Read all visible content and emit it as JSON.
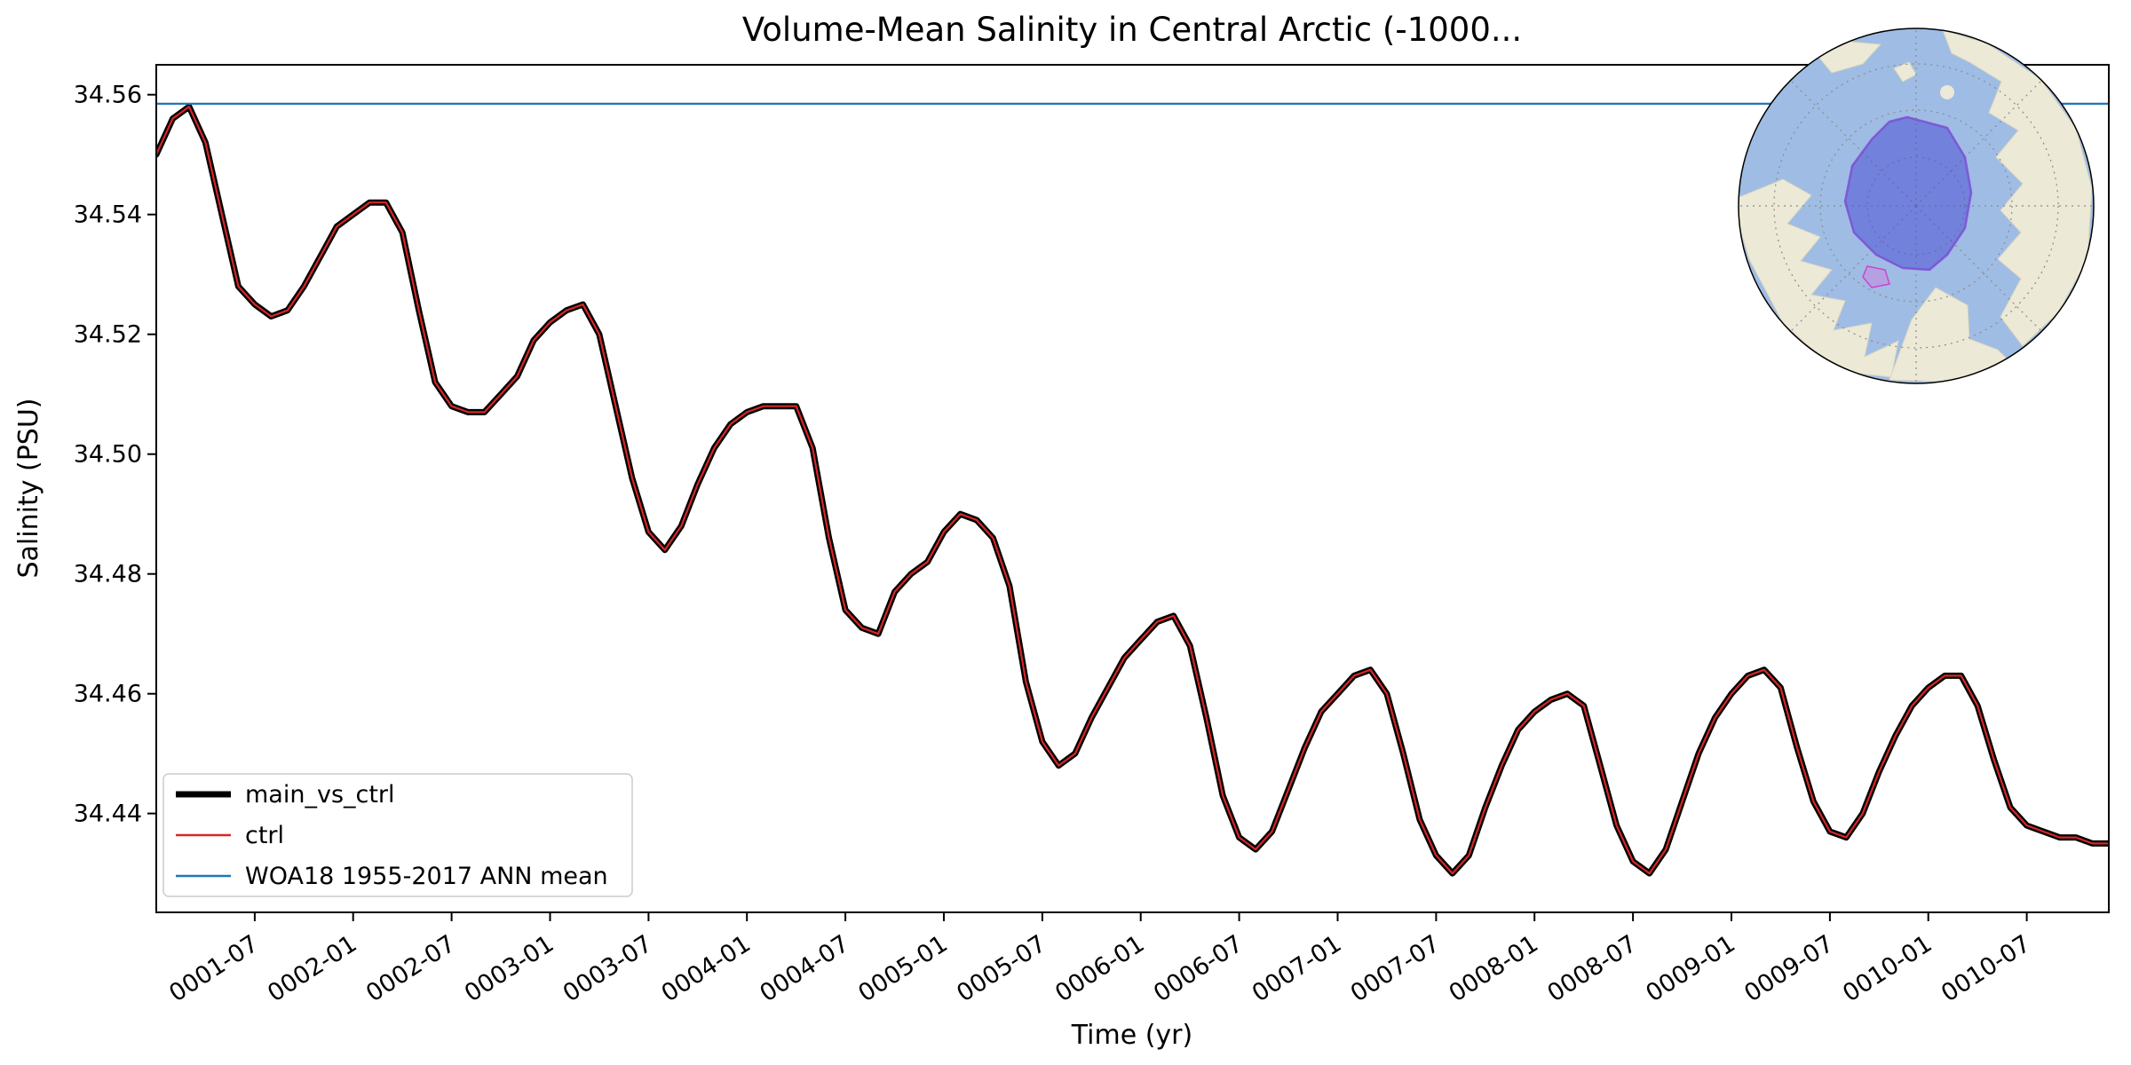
{
  "title": "Volume-Mean Salinity in Central Arctic (-1000...",
  "legend": [
    {
      "label": "main_vs_ctrl",
      "color": "#000000",
      "linewidth": 7
    },
    {
      "label": "ctrl",
      "color": "#d62728",
      "linewidth": 2.2
    },
    {
      "label": "WOA18 1955-2017 ANN mean",
      "color": "#1f77b4",
      "linewidth": 2.2
    }
  ],
  "chart_data": {
    "type": "line",
    "title": "Volume-Mean Salinity in Central Arctic (-1000...",
    "xlabel": "Time (yr)",
    "ylabel": "Salinity (PSU)",
    "x_start": "0001-01",
    "x_end": "0010-12",
    "frequency": "monthly",
    "xlim": [
      0,
      119
    ],
    "ylim": [
      34.4235,
      34.565
    ],
    "y_ticks": [
      "34.44",
      "34.46",
      "34.48",
      "34.50",
      "34.52",
      "34.54",
      "34.56"
    ],
    "x_tick_months": [
      6,
      12,
      18,
      24,
      30,
      36,
      42,
      48,
      54,
      60,
      66,
      72,
      78,
      84,
      90,
      96,
      102,
      108,
      114
    ],
    "x_tick_labels": [
      "0001-07",
      "0002-01",
      "0002-07",
      "0003-01",
      "0003-07",
      "0004-01",
      "0004-07",
      "0005-01",
      "0005-07",
      "0006-01",
      "0006-07",
      "0007-01",
      "0007-07",
      "0008-01",
      "0008-07",
      "0009-01",
      "0009-07",
      "0010-01",
      "0010-07"
    ],
    "values": [
      34.55,
      34.556,
      34.558,
      34.552,
      34.54,
      34.528,
      34.525,
      34.523,
      34.524,
      34.528,
      34.533,
      34.538,
      34.54,
      34.542,
      34.542,
      34.537,
      34.524,
      34.512,
      34.508,
      34.507,
      34.507,
      34.51,
      34.513,
      34.519,
      34.522,
      34.524,
      34.525,
      34.52,
      34.508,
      34.496,
      34.487,
      34.484,
      34.488,
      34.495,
      34.501,
      34.505,
      34.507,
      34.508,
      34.508,
      34.508,
      34.501,
      34.486,
      34.474,
      34.471,
      34.47,
      34.477,
      34.48,
      34.482,
      34.487,
      34.49,
      34.489,
      34.486,
      34.478,
      34.462,
      34.452,
      34.448,
      34.45,
      34.456,
      34.461,
      34.466,
      34.469,
      34.472,
      34.473,
      34.468,
      34.456,
      34.443,
      34.436,
      34.434,
      34.437,
      34.444,
      34.451,
      34.457,
      34.46,
      34.463,
      34.464,
      34.46,
      34.45,
      34.439,
      34.433,
      34.43,
      34.433,
      34.441,
      34.448,
      34.454,
      34.457,
      34.459,
      34.46,
      34.458,
      34.448,
      34.438,
      34.432,
      34.43,
      34.434,
      34.442,
      34.45,
      34.456,
      34.46,
      34.463,
      34.464,
      34.461,
      34.451,
      34.442,
      34.437,
      34.436,
      34.44,
      34.447,
      34.453,
      34.458,
      34.461,
      34.463,
      34.463,
      34.458,
      34.449,
      34.441,
      34.438,
      34.437,
      34.436,
      34.436,
      34.435,
      34.435
    ],
    "series": [
      {
        "name": "main_vs_ctrl",
        "color": "#000000",
        "linewidth": 7,
        "uses": "values"
      },
      {
        "name": "ctrl",
        "color": "#d62728",
        "linewidth": 2.2,
        "uses": "values"
      }
    ],
    "reference_line": {
      "name": "WOA18 1955-2017 ANN mean",
      "value": 34.5585,
      "color": "#1f77b4",
      "linewidth": 2.2
    },
    "grid": false,
    "legend_position": "lower left"
  },
  "inset_map": {
    "description": "North polar stereographic map with Central Arctic region highlighted",
    "ocean_color": "#9fbce4",
    "land_color": "#ece9d6",
    "coast_color": "#d8d5c0",
    "region_fill": "#4646d2",
    "region_edge": "#7b4fd4",
    "secondary_region_fill": "#e070e0",
    "secondary_region_edge": "#cc44cc",
    "graticule_color": "#8a8a8a"
  }
}
